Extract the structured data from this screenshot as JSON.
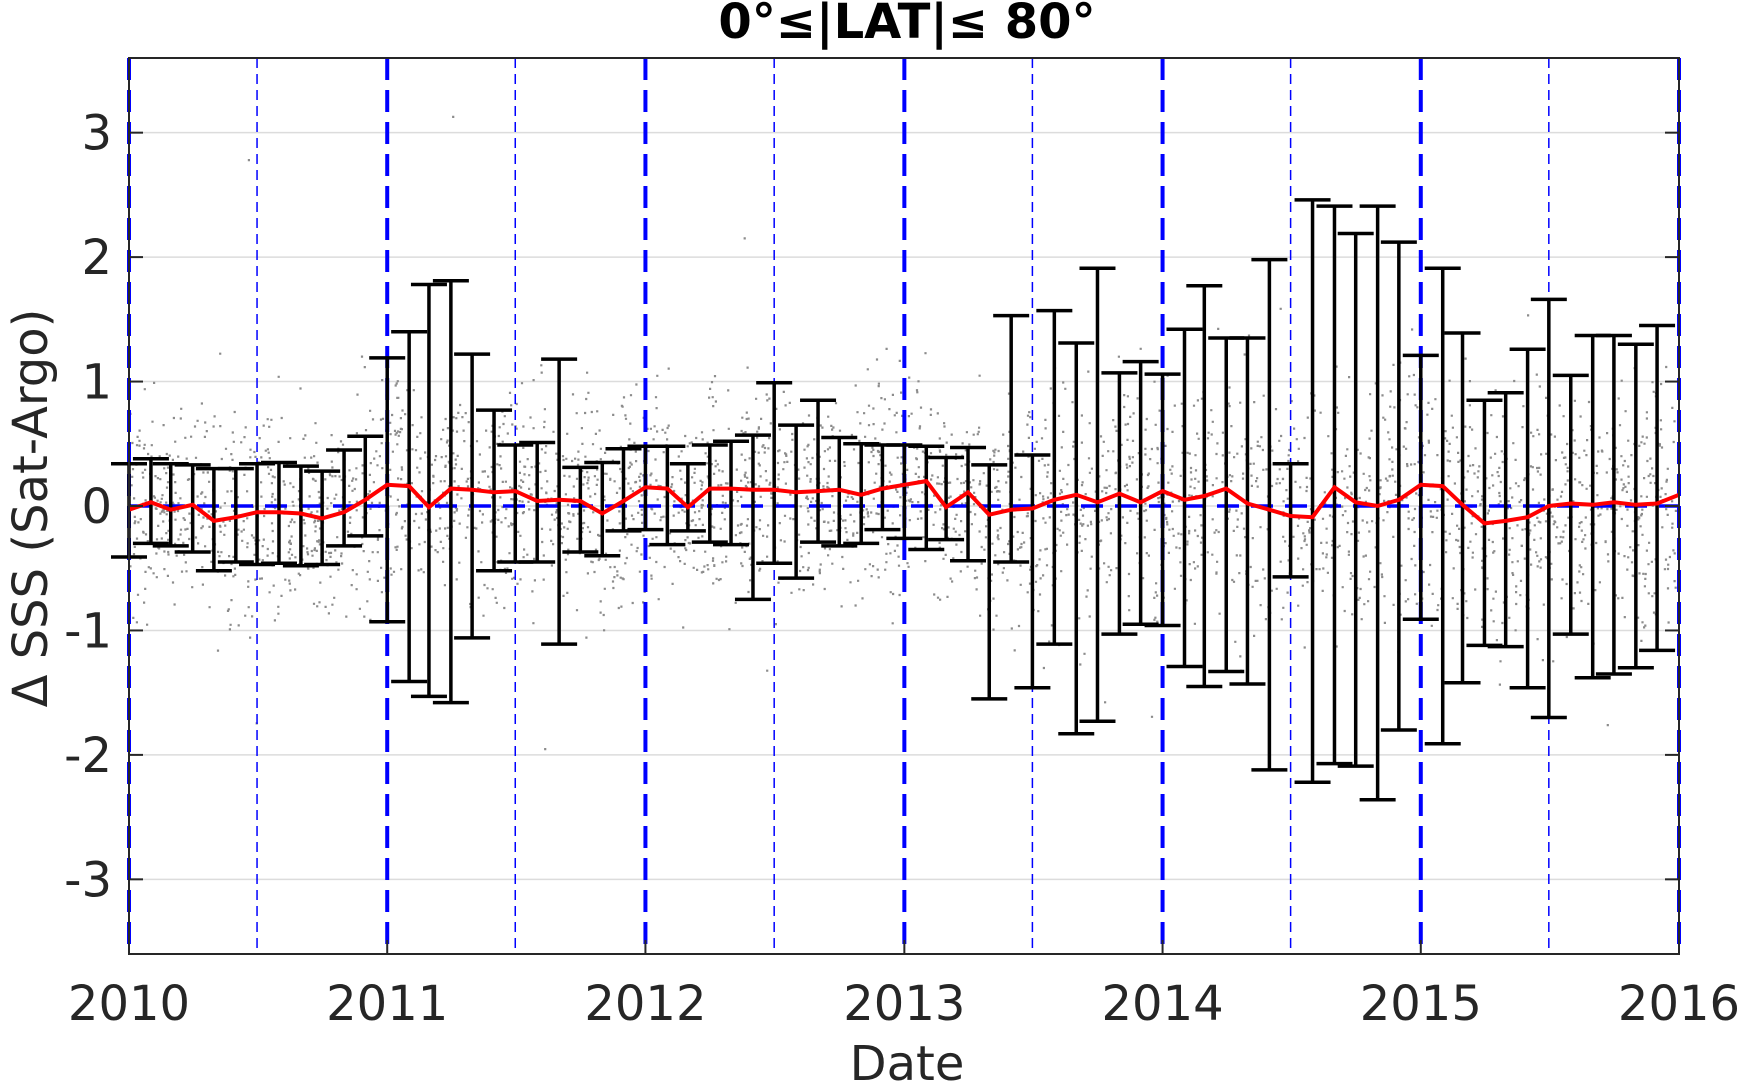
{
  "chart_data": {
    "type": "scatter",
    "title": "0°≤|LAT|≤ 80°",
    "xlabel": "Date",
    "ylabel": "Δ SSS (Sat-Argo)",
    "xlim": [
      "2010-01-01",
      "2016-01-01"
    ],
    "ylim": [
      -3.6,
      3.6
    ],
    "x_ticks": [
      "2010",
      "2011",
      "2012",
      "2013",
      "2014",
      "2015",
      "2016"
    ],
    "y_ticks": [
      3,
      2,
      1,
      0,
      -1,
      -2,
      -3
    ],
    "y_tick_labels": [
      "3",
      "2",
      "1",
      "0",
      "-1",
      "-2",
      "-3"
    ],
    "grid": true,
    "zero_line": 0,
    "year_lines": [
      "2010-01-01",
      "2011-01-01",
      "2012-01-01",
      "2013-01-01",
      "2014-01-01",
      "2015-01-01",
      "2016-01-01"
    ],
    "half_year_lines": [
      "2010-07-01",
      "2011-07-01",
      "2012-07-01",
      "2013-07-01",
      "2014-07-01",
      "2015-07-01"
    ],
    "scatter_note": "Dense cloud of individual match-up differences, roughly ±0.8 spread about zero",
    "series": [
      {
        "kind": "error_bars",
        "dates": [
          "2010-01-01",
          "2010-02-01",
          "2010-03-01",
          "2010-04-01",
          "2010-05-01",
          "2010-06-01",
          "2010-07-01",
          "2010-08-01",
          "2010-09-01",
          "2010-10-01",
          "2010-11-01",
          "2010-12-01",
          "2011-01-01",
          "2011-02-01",
          "2011-03-01",
          "2011-04-01",
          "2011-05-01",
          "2011-06-01",
          "2011-07-01",
          "2011-08-01",
          "2011-09-01",
          "2011-10-01",
          "2011-11-01",
          "2011-12-01",
          "2012-01-01",
          "2012-02-01",
          "2012-03-01",
          "2012-04-01",
          "2012-05-01",
          "2012-06-01",
          "2012-07-01",
          "2012-08-01",
          "2012-09-01",
          "2012-10-01",
          "2012-11-01",
          "2012-12-01",
          "2013-01-01",
          "2013-02-01",
          "2013-03-01",
          "2013-04-01",
          "2013-05-01",
          "2013-06-01",
          "2013-07-01",
          "2013-08-01",
          "2013-09-01",
          "2013-10-01",
          "2013-11-01",
          "2013-12-01",
          "2014-01-01",
          "2014-02-01",
          "2014-03-01",
          "2014-04-01",
          "2014-05-01",
          "2014-06-01",
          "2014-07-01",
          "2014-08-01",
          "2014-09-01",
          "2014-10-01",
          "2014-11-01",
          "2014-12-01",
          "2015-01-01",
          "2015-02-01",
          "2015-03-01",
          "2015-04-01",
          "2015-05-01",
          "2015-06-01",
          "2015-07-01",
          "2015-08-01",
          "2015-09-01",
          "2015-10-01",
          "2015-11-01",
          "2015-12-01"
        ],
        "upper": [
          0.34,
          0.38,
          0.34,
          0.33,
          0.3,
          0.3,
          0.34,
          0.35,
          0.32,
          0.28,
          0.45,
          0.56,
          1.19,
          1.4,
          1.78,
          1.81,
          1.22,
          0.77,
          0.49,
          0.51,
          1.18,
          0.31,
          0.35,
          0.46,
          0.48,
          0.48,
          0.34,
          0.49,
          0.52,
          0.57,
          0.99,
          0.65,
          0.85,
          0.55,
          0.5,
          0.49,
          0.49,
          0.48,
          0.39,
          0.47,
          0.33,
          1.53,
          0.41,
          1.57,
          1.31,
          1.91,
          1.07,
          1.16,
          1.06,
          1.42,
          1.77,
          1.35,
          1.35,
          1.98,
          0.34,
          2.46,
          2.41,
          2.19,
          2.41,
          2.12,
          1.21,
          1.91,
          1.39,
          0.85,
          0.91,
          1.26,
          1.66,
          1.05,
          1.37,
          1.37,
          1.3,
          1.45
        ],
        "lower": [
          -0.41,
          -0.3,
          -0.32,
          -0.37,
          -0.52,
          -0.45,
          -0.47,
          -0.46,
          -0.48,
          -0.47,
          -0.32,
          -0.24,
          -0.93,
          -1.41,
          -1.53,
          -1.58,
          -1.06,
          -0.52,
          -0.45,
          -0.45,
          -1.11,
          -0.37,
          -0.4,
          -0.2,
          -0.19,
          -0.31,
          -0.2,
          -0.29,
          -0.31,
          -0.75,
          -0.46,
          -0.58,
          -0.29,
          -0.32,
          -0.3,
          -0.19,
          -0.26,
          -0.35,
          -0.27,
          -0.44,
          -1.55,
          -0.45,
          -1.46,
          -1.11,
          -1.83,
          -1.73,
          -1.03,
          -0.95,
          -0.96,
          -1.29,
          -1.45,
          -1.33,
          -1.43,
          -2.12,
          -0.57,
          -2.22,
          -2.07,
          -2.09,
          -2.36,
          -1.8,
          -0.91,
          -1.91,
          -1.42,
          -1.12,
          -1.13,
          -1.46,
          -1.7,
          -1.03,
          -1.38,
          -1.35,
          -1.3,
          -1.16
        ]
      },
      {
        "kind": "line",
        "color": "#ff0000",
        "dates": [
          "2010-01-01",
          "2010-02-01",
          "2010-03-01",
          "2010-04-01",
          "2010-05-01",
          "2010-06-01",
          "2010-07-01",
          "2010-08-01",
          "2010-09-01",
          "2010-10-01",
          "2010-11-01",
          "2010-12-01",
          "2011-01-01",
          "2011-02-01",
          "2011-03-01",
          "2011-04-01",
          "2011-05-01",
          "2011-06-01",
          "2011-07-01",
          "2011-08-01",
          "2011-09-01",
          "2011-10-01",
          "2011-11-01",
          "2011-12-01",
          "2012-01-01",
          "2012-02-01",
          "2012-03-01",
          "2012-04-01",
          "2012-05-01",
          "2012-06-01",
          "2012-07-01",
          "2012-08-01",
          "2012-09-01",
          "2012-10-01",
          "2012-11-01",
          "2012-12-01",
          "2013-01-01",
          "2013-02-01",
          "2013-03-01",
          "2013-04-01",
          "2013-05-01",
          "2013-06-01",
          "2013-07-01",
          "2013-08-01",
          "2013-09-01",
          "2013-10-01",
          "2013-11-01",
          "2013-12-01",
          "2014-01-01",
          "2014-02-01",
          "2014-03-01",
          "2014-04-01",
          "2014-05-01",
          "2014-06-01",
          "2014-07-01",
          "2014-08-01",
          "2014-09-01",
          "2014-10-01",
          "2014-11-01",
          "2014-12-01",
          "2015-01-01",
          "2015-02-01",
          "2015-03-01",
          "2015-04-01",
          "2015-05-01",
          "2015-06-01",
          "2015-07-01",
          "2015-08-01",
          "2015-09-01",
          "2015-10-01",
          "2015-11-01",
          "2015-12-01",
          "2016-01-01"
        ],
        "values": [
          -0.03,
          0.03,
          -0.03,
          0.01,
          -0.12,
          -0.09,
          -0.05,
          -0.05,
          -0.06,
          -0.1,
          -0.05,
          0.05,
          0.17,
          0.16,
          -0.01,
          0.14,
          0.13,
          0.11,
          0.12,
          0.04,
          0.05,
          0.04,
          -0.06,
          0.04,
          0.15,
          0.14,
          -0.01,
          0.14,
          0.14,
          0.13,
          0.13,
          0.11,
          0.12,
          0.13,
          0.09,
          0.14,
          0.17,
          0.2,
          -0.01,
          0.11,
          -0.07,
          -0.03,
          -0.02,
          0.05,
          0.09,
          0.03,
          0.1,
          0.03,
          0.12,
          0.05,
          0.08,
          0.14,
          0.02,
          -0.03,
          -0.08,
          -0.09,
          0.15,
          0.03,
          0.0,
          0.05,
          0.17,
          0.16,
          0.01,
          -0.14,
          -0.12,
          -0.09,
          0.0,
          0.02,
          0.01,
          0.03,
          0.01,
          0.02,
          0.09
        ]
      }
    ]
  }
}
